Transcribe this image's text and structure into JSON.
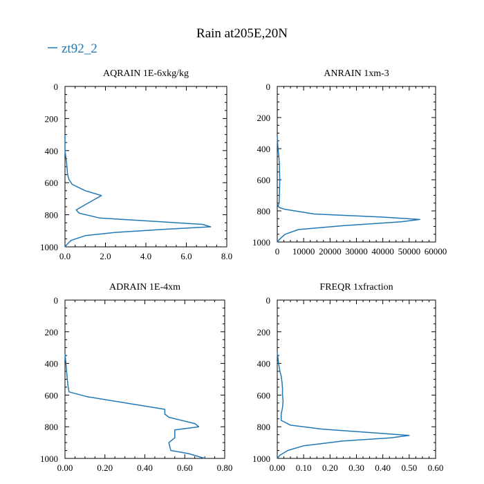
{
  "title": "Rain at205E,20N",
  "legend": {
    "label": "zt92_2",
    "color": "#1f77b4",
    "placement": "top-left"
  },
  "chart_data": [
    {
      "type": "line",
      "title": "AQRAIN  1E-6xkg/kg",
      "xlim": [
        0,
        8
      ],
      "ylim": [
        1000,
        0
      ],
      "xticks": [
        0,
        2,
        4,
        6,
        8
      ],
      "xtick_labels": [
        "0.0",
        "2.0",
        "4.0",
        "6.0",
        "8.0"
      ],
      "yticks": [
        0,
        200,
        400,
        600,
        800,
        1000
      ],
      "ytick_labels": [
        "0",
        "200",
        "400",
        "600",
        "800",
        "1000"
      ],
      "series": [
        {
          "name": "zt92_2",
          "x": [
            0.0,
            0.0,
            0.05,
            0.1,
            0.12,
            0.15,
            0.2,
            0.3,
            0.35,
            1.0,
            1.8,
            1.1,
            0.55,
            0.7,
            1.7,
            6.8,
            7.2,
            5.0,
            2.5,
            1.0,
            0.3,
            0.1,
            0.0
          ],
          "y": [
            300,
            400,
            450,
            500,
            540,
            560,
            580,
            600,
            610,
            650,
            680,
            730,
            770,
            790,
            820,
            860,
            875,
            890,
            910,
            930,
            960,
            985,
            1000
          ]
        }
      ]
    },
    {
      "type": "line",
      "title": "ANRAIN  1xm-3",
      "xlim": [
        0,
        60000
      ],
      "ylim": [
        1000,
        0
      ],
      "xticks": [
        0,
        10000,
        20000,
        30000,
        40000,
        50000,
        60000
      ],
      "xtick_labels": [
        "0",
        "10000",
        "20000",
        "30000",
        "40000",
        "50000",
        "60000"
      ],
      "yticks": [
        0,
        200,
        400,
        600,
        800,
        1000
      ],
      "ytick_labels": [
        "0",
        "200",
        "400",
        "600",
        "800",
        "1000"
      ],
      "series": [
        {
          "name": "zt92_2",
          "x": [
            0,
            300,
            600,
            800,
            900,
            950,
            900,
            800,
            700,
            300,
            1000,
            3000,
            14000,
            40000,
            54000,
            47000,
            25000,
            8000,
            3000,
            1000,
            0
          ],
          "y": [
            320,
            400,
            450,
            500,
            560,
            600,
            650,
            700,
            750,
            770,
            780,
            790,
            820,
            840,
            855,
            870,
            895,
            920,
            950,
            980,
            1000
          ]
        }
      ]
    },
    {
      "type": "line",
      "title": "ADRAIN  1E-4xm",
      "xlim": [
        0,
        0.8
      ],
      "ylim": [
        1000,
        0
      ],
      "xticks": [
        0,
        0.2,
        0.4,
        0.6,
        0.8
      ],
      "xtick_labels": [
        "0.00",
        "0.20",
        "0.40",
        "0.60",
        "0.80"
      ],
      "yticks": [
        0,
        200,
        400,
        600,
        800,
        1000
      ],
      "ytick_labels": [
        "0",
        "200",
        "400",
        "600",
        "800",
        "1000"
      ],
      "series": [
        {
          "name": "zt92_2",
          "x": [
            0.0,
            0.005,
            0.01,
            0.015,
            0.02,
            0.11,
            0.5,
            0.5,
            0.52,
            0.65,
            0.67,
            0.55,
            0.55,
            0.52,
            0.53,
            0.62,
            0.7
          ],
          "y": [
            340,
            400,
            480,
            540,
            580,
            610,
            690,
            720,
            740,
            780,
            800,
            820,
            870,
            900,
            950,
            970,
            1000
          ]
        }
      ]
    },
    {
      "type": "line",
      "title": "FREQR  1xfraction",
      "xlim": [
        0,
        0.6
      ],
      "ylim": [
        1000,
        0
      ],
      "xticks": [
        0,
        0.1,
        0.2,
        0.3,
        0.4,
        0.5,
        0.6
      ],
      "xtick_labels": [
        "0.00",
        "0.10",
        "0.20",
        "0.30",
        "0.40",
        "0.50",
        "0.60"
      ],
      "yticks": [
        0,
        200,
        400,
        600,
        800,
        1000
      ],
      "ytick_labels": [
        "0",
        "200",
        "400",
        "600",
        "800",
        "1000"
      ],
      "series": [
        {
          "name": "zt92_2",
          "x": [
            0.0,
            0.005,
            0.01,
            0.015,
            0.018,
            0.02,
            0.02,
            0.022,
            0.02,
            0.015,
            0.015,
            0.05,
            0.17,
            0.38,
            0.5,
            0.43,
            0.25,
            0.1,
            0.04,
            0.01,
            0.0
          ],
          "y": [
            330,
            400,
            450,
            480,
            520,
            560,
            600,
            640,
            680,
            720,
            760,
            790,
            815,
            840,
            855,
            870,
            890,
            920,
            950,
            980,
            1000
          ]
        }
      ]
    }
  ]
}
